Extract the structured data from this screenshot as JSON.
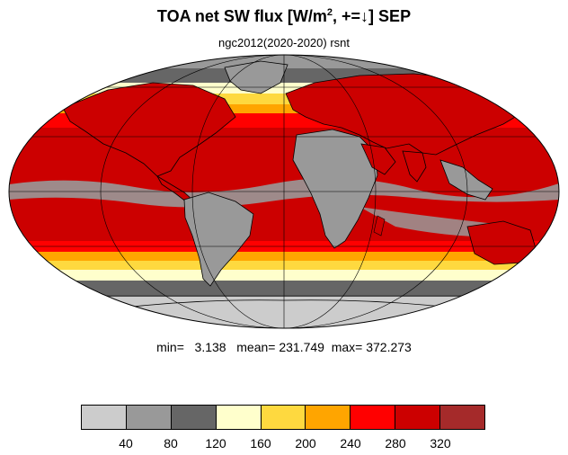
{
  "title": {
    "main": "TOA net SW flux [W/m",
    "sup": "2",
    "rest": ", +=↓]  SEP"
  },
  "subtitle": "ngc2012(2020-2020)   rsnt",
  "stats": "min=   3.138   mean= 231.749  max= 372.273",
  "colorbar": {
    "colors": [
      "#cccccc",
      "#999999",
      "#666666",
      "#ffffcc",
      "#fed93f",
      "#ffa500",
      "#ff0000",
      "#cc0000",
      "#a52a2a"
    ],
    "ticks": [
      "40",
      "80",
      "120",
      "160",
      "200",
      "240",
      "280",
      "320"
    ]
  },
  "map_colors": {
    "ocean_tropics": "#cc0000",
    "land_tropics": "#999999",
    "bright_red": "#ff0000",
    "orange": "#ffa500",
    "yellow": "#fed93f",
    "pale_yellow": "#ffffcc",
    "dark_gray": "#666666",
    "mid_gray": "#999999",
    "light_gray": "#cccccc",
    "coast": "#000000"
  }
}
